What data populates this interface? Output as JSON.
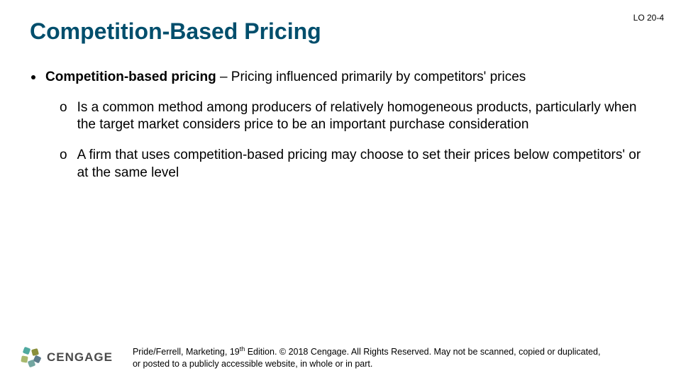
{
  "lo_tag": "LO 20-4",
  "title": "Competition-Based Pricing",
  "main_bullet": {
    "bold_lead": "Competition-based pricing",
    "rest": " – Pricing influenced primarily by competitors' prices"
  },
  "sub_bullets": [
    "Is a common method among producers of relatively homogeneous products, particularly when the target market considers price to be an important purchase consideration",
    "A firm that uses competition-based pricing may choose to set their prices below competitors' or at the same level"
  ],
  "logo_text": "CENGAGE",
  "copyright_pre": "Pride/Ferrell, Marketing, 19",
  "copyright_sup": "th",
  "copyright_post": " Edition. © 2018 Cengage. All Rights Reserved. May not be scanned, copied or duplicated, or posted to a publicly accessible website, in whole or in part.",
  "colors": {
    "title": "#004e6c",
    "body": "#000000",
    "bg": "#ffffff"
  }
}
